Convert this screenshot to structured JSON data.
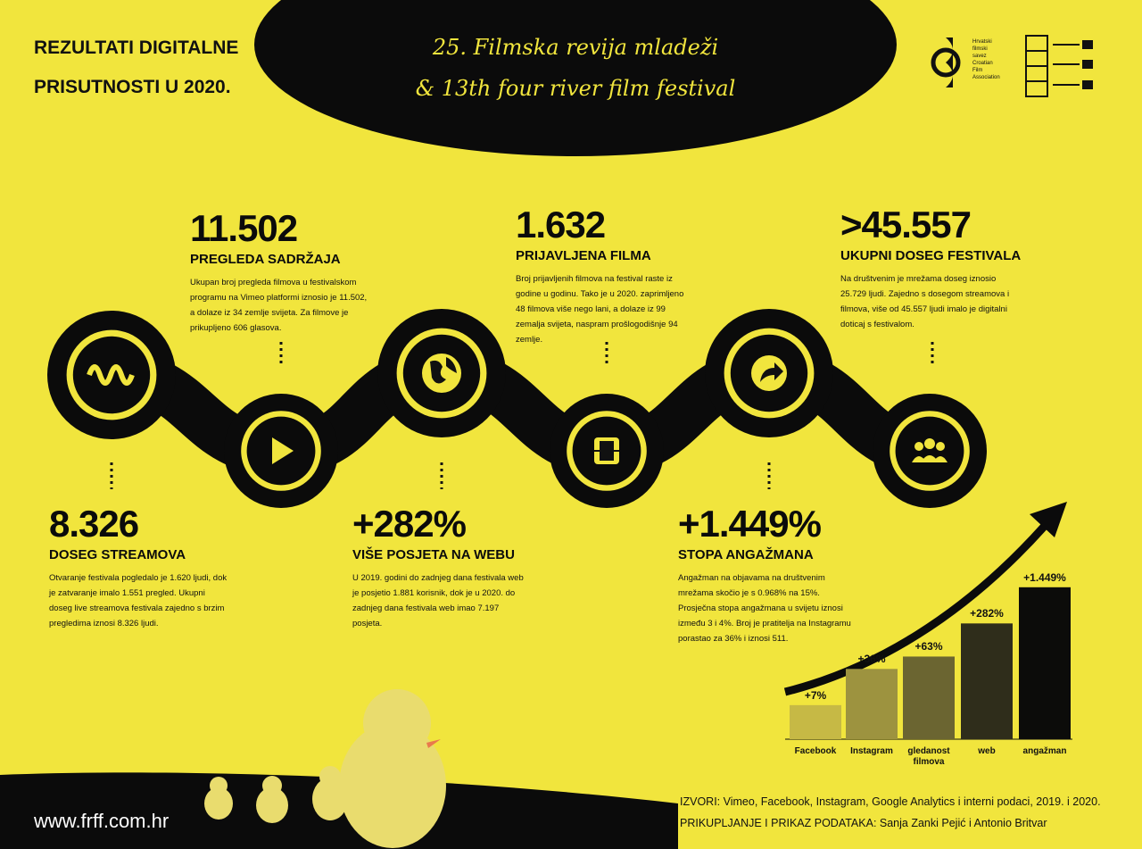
{
  "header": {
    "title_lines": [
      "REZULTATI DIGITALNE",
      "PRISUTNOSTI U 2020."
    ],
    "festival_lines": [
      "25. Filmska revija mladeži",
      "& 13th four river film festival"
    ],
    "logo_text": [
      "Hrvatski",
      "filmski",
      "savez",
      "Croatian",
      "Film",
      "Association"
    ]
  },
  "stats": [
    {
      "number": "11.502",
      "label": "PREGLEDA SADRŽAJA",
      "text": "Ukupan broj pregleda filmova u festivalskom programu na Vimeo platformi iznosio je 11.502, a dolaze iz 34 zemlje svijeta. Za filmove je prikupljeno 606 glasova."
    },
    {
      "number": "1.632",
      "label": "PRIJAVLJENA FILMA",
      "text": "Broj prijavljenih filmova na festival raste iz godine u godinu. Tako je u 2020. zaprimljeno 48 filmova više nego lani, a dolaze iz 99 zemalja svijeta, naspram prošlogodišnje 94 zemlje."
    },
    {
      "number": ">45.557",
      "label": "UKUPNI DOSEG FESTIVALA",
      "text": "Na društvenim je mrežama doseg iznosio 25.729 ljudi. Zajedno s dosegom streamova i filmova, više od 45.557 ljudi imalo je digitalni doticaj s festivalom."
    },
    {
      "number": "8.326",
      "label": "DOSEG STREAMOVA",
      "text": "Otvaranje festivala pogledalo je 1.620 ljudi, dok je zatvaranje imalo 1.551 pregled. Ukupni doseg live streamova festivala zajedno s brzim pregledima iznosi 8.326 ljudi."
    },
    {
      "number": "+282%",
      "label": "VIŠE POSJETA NA WEBU",
      "text": "U 2019. godini do zadnjeg dana festivala web je posjetio 1.881 korisnik, dok je u 2020. do zadnjeg dana festivala web imao 7.197 posjeta."
    },
    {
      "number": "+1.449%",
      "label": "STOPA ANGAŽMANA",
      "text": "Angažman na objavama na društvenim mrežama skočio je s 0.968% na 15%. Prosječna stopa angažmana u svijetu iznosi između 3 i 4%. Broj je pratitelja na Instagramu porastao za 36% i iznosi 511."
    }
  ],
  "chart_data": {
    "type": "bar",
    "categories": [
      "Facebook",
      "Instagram",
      "gledanost filmova",
      "web",
      "angažman"
    ],
    "values": [
      7,
      36,
      63,
      282,
      1449
    ],
    "value_labels": [
      "+7%",
      "+36%",
      "+63%",
      "+282%",
      "+1.449%"
    ],
    "colors": [
      "#c6b945",
      "#9d933f",
      "#6b6531",
      "#2f2d1b",
      "#0c0c0a"
    ],
    "log_scale": true
  },
  "footer": {
    "url": "www.frff.com.hr",
    "sources": [
      "IZVORI: Vimeo, Facebook, Instagram, Google Analytics i interni podaci, 2019. i 2020.",
      "PRIKUPLJANJE I PRIKAZ PODATAKA: Sanja Zanki Pejić i Antonio Britvar"
    ]
  }
}
